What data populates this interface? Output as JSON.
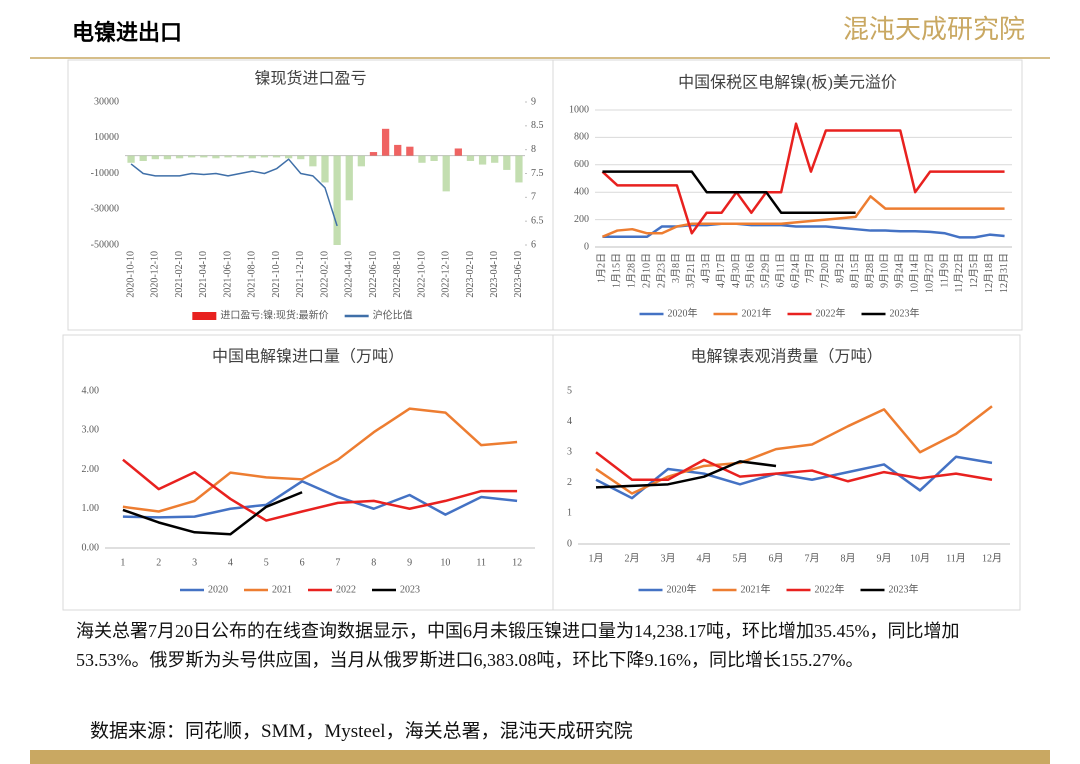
{
  "header": {
    "title": "电镍进出口",
    "logo": "混沌天成研究院"
  },
  "chart_data": [
    {
      "type": "combo",
      "title": "镍现货进口盈亏",
      "categories": [
        "2020-10-10",
        null,
        "2020-12-10",
        null,
        "2021-02-10",
        null,
        "2021-04-10",
        null,
        "2021-06-10",
        null,
        "2021-08-10",
        null,
        "2021-10-10",
        null,
        "2021-12-10",
        null,
        "2022-02-10",
        null,
        "2022-04-10",
        null,
        "2022-06-10",
        null,
        "2022-08-10",
        null,
        "2022-10-10",
        null,
        "2022-12-10",
        null,
        "2023-02-10",
        null,
        "2023-04-10",
        null,
        "2023-06-10"
      ],
      "series": [
        {
          "name": "进口盈亏:镍:现货:最新价",
          "type": "bar",
          "color": "#e8211f",
          "negative_color": "#a9d08e",
          "values": [
            -4000,
            -3000,
            -2000,
            -2000,
            -1500,
            -1000,
            -1000,
            -1500,
            -1000,
            -1000,
            -1500,
            -1000,
            -1000,
            -1500,
            -2000,
            -6000,
            -15000,
            -50000,
            -25000,
            -6000,
            2000,
            15000,
            6000,
            5000,
            -4000,
            -3000,
            -20000,
            4000,
            -3000,
            -5000,
            -4000,
            -8000,
            -15000
          ]
        },
        {
          "name": "沪伦比值",
          "type": "line",
          "axis": "y2",
          "color": "#3f6fa8",
          "values": [
            7.7,
            7.5,
            7.45,
            7.45,
            7.45,
            7.5,
            7.48,
            7.5,
            7.45,
            7.5,
            7.55,
            7.5,
            7.6,
            7.8,
            7.5,
            7.45,
            7.2,
            6.4,
            null,
            null,
            null,
            null,
            null,
            null,
            null,
            null,
            null,
            null,
            null,
            null,
            null,
            null,
            null
          ]
        }
      ],
      "ylim": [
        -50000,
        30000
      ],
      "yticks": [
        -50000,
        -30000,
        -10000,
        10000,
        30000
      ],
      "y2lim": [
        6,
        9
      ],
      "y2ticks": [
        6,
        6.5,
        7,
        7.5,
        8,
        8.5,
        9
      ],
      "grid": false
    },
    {
      "type": "line",
      "title": "中国保税区电解镍(板)美元溢价",
      "categories": [
        "1月2日",
        "1月15日",
        "1月28日",
        "2月10日",
        "2月23日",
        "3月8日",
        "3月21日",
        "4月3日",
        "4月17日",
        "4月30日",
        "5月16日",
        "5月29日",
        "6月11日",
        "6月24日",
        "7月7日",
        "7月20日",
        "8月2日",
        "8月15日",
        "8月28日",
        "9月10日",
        "9月24日",
        "10月14日",
        "10月27日",
        "11月9日",
        "11月22日",
        "12月5日",
        "12月18日",
        "12月31日"
      ],
      "series": [
        {
          "name": "2020年",
          "color": "#4472c4",
          "values": [
            75,
            75,
            75,
            75,
            150,
            150,
            160,
            160,
            170,
            170,
            160,
            160,
            160,
            150,
            150,
            150,
            140,
            130,
            120,
            120,
            115,
            115,
            110,
            100,
            70,
            70,
            90,
            80
          ]
        },
        {
          "name": "2021年",
          "color": "#ed7d31",
          "values": [
            75,
            120,
            130,
            100,
            100,
            150,
            170,
            170,
            170,
            170,
            170,
            170,
            170,
            180,
            190,
            200,
            210,
            220,
            370,
            280,
            280,
            280,
            280,
            280,
            280,
            280,
            280,
            280
          ]
        },
        {
          "name": "2022年",
          "color": "#e8211f",
          "values": [
            550,
            450,
            450,
            450,
            450,
            450,
            100,
            250,
            250,
            400,
            250,
            400,
            400,
            900,
            550,
            850,
            850,
            850,
            850,
            850,
            850,
            400,
            550,
            550,
            550,
            550,
            550,
            550
          ]
        },
        {
          "name": "2023年",
          "color": "#000000",
          "values": [
            550,
            550,
            550,
            550,
            550,
            550,
            550,
            400,
            400,
            400,
            400,
            400,
            250,
            250,
            250,
            250,
            250,
            250,
            null,
            null,
            null,
            null,
            null,
            null,
            null,
            null,
            null,
            null
          ]
        }
      ],
      "ylim": [
        0,
        1000
      ],
      "yticks": [
        0,
        200,
        400,
        600,
        800,
        1000
      ],
      "grid": true
    },
    {
      "type": "line",
      "title": "中国电解镍进口量（万吨）",
      "categories": [
        "1",
        "2",
        "3",
        "4",
        "5",
        "6",
        "7",
        "8",
        "9",
        "10",
        "11",
        "12"
      ],
      "series": [
        {
          "name": "2020",
          "color": "#4472c4",
          "values": [
            0.8,
            0.78,
            0.8,
            1.0,
            1.1,
            1.7,
            1.3,
            1.0,
            1.35,
            0.85,
            1.3,
            1.2
          ]
        },
        {
          "name": "2021",
          "color": "#ed7d31",
          "values": [
            1.05,
            0.93,
            1.2,
            1.92,
            1.8,
            1.75,
            2.25,
            2.95,
            3.55,
            3.45,
            2.62,
            2.7
          ]
        },
        {
          "name": "2022",
          "color": "#e8211f",
          "values": [
            2.25,
            1.5,
            1.93,
            1.25,
            0.7,
            0.93,
            1.15,
            1.2,
            1.0,
            1.2,
            1.45,
            1.45
          ]
        },
        {
          "name": "2023",
          "color": "#000000",
          "values": [
            0.97,
            0.65,
            0.4,
            0.35,
            1.05,
            1.42,
            null,
            null,
            null,
            null,
            null,
            null
          ]
        }
      ],
      "ylim": [
        0,
        4
      ],
      "yticks": [
        {
          "value": 0,
          "label": "0.00"
        },
        {
          "value": 1,
          "label": "1.00"
        },
        {
          "value": 2,
          "label": "2.00"
        },
        {
          "value": 3,
          "label": "3.00"
        },
        {
          "value": 4,
          "label": "4.00"
        }
      ],
      "grid": false
    },
    {
      "type": "line",
      "title": "电解镍表观消费量（万吨）",
      "categories": [
        "1月",
        "2月",
        "3月",
        "4月",
        "5月",
        "6月",
        "7月",
        "8月",
        "9月",
        "10月",
        "11月",
        "12月"
      ],
      "series": [
        {
          "name": "2020年",
          "color": "#4472c4",
          "values": [
            2.1,
            1.5,
            2.45,
            2.3,
            1.95,
            2.3,
            2.1,
            2.35,
            2.6,
            1.75,
            2.85,
            2.65
          ]
        },
        {
          "name": "2021年",
          "color": "#ed7d31",
          "values": [
            2.45,
            1.65,
            2.2,
            2.55,
            2.65,
            3.1,
            3.25,
            3.85,
            4.4,
            3.0,
            3.6,
            4.5
          ]
        },
        {
          "name": "2022年",
          "color": "#e8211f",
          "values": [
            3.0,
            2.1,
            2.1,
            2.75,
            2.2,
            2.3,
            2.4,
            2.05,
            2.35,
            2.15,
            2.3,
            2.1
          ]
        },
        {
          "name": "2023年",
          "color": "#000000",
          "values": [
            1.85,
            1.9,
            1.95,
            2.2,
            2.7,
            2.55,
            null,
            null,
            null,
            null,
            null,
            null
          ]
        }
      ],
      "ylim": [
        0,
        5
      ],
      "yticks": [
        0,
        1,
        2,
        3,
        4,
        5
      ],
      "grid": false
    }
  ],
  "body": {
    "paragraph": "海关总署7月20日公布的在线查询数据显示，中国6月未锻压镍进口量为14,238.17吨，环比增加35.45%，同比增加53.53%。俄罗斯为头号供应国，当月从俄罗斯进口6,383.08吨，环比下降9.16%，同比增长155.27%。",
    "source": "数据来源：同花顺，SMM，Mysteel，海关总署，混沌天成研究院"
  }
}
